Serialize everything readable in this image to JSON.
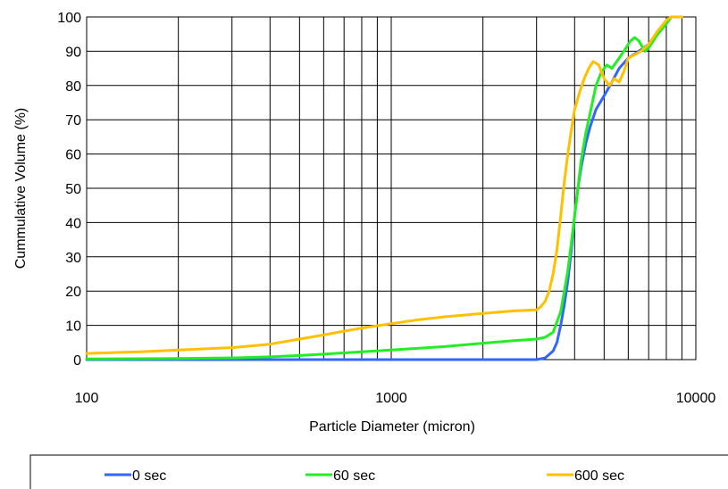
{
  "chart_data": {
    "type": "line",
    "title": "",
    "xlabel": "Particle Diameter (micron)",
    "ylabel": "Cummulative Volume (%)",
    "x_scale": "log",
    "xlim": [
      100,
      10000
    ],
    "ylim": [
      0,
      100
    ],
    "x_tick_labels": [
      "100",
      "1000",
      "10000"
    ],
    "y_tick_labels": [
      "0",
      "10",
      "20",
      "30",
      "40",
      "50",
      "60",
      "70",
      "80",
      "90",
      "100"
    ],
    "grid": true,
    "legend_position": "bottom",
    "series": [
      {
        "name": "0 sec",
        "color": "#3366ff",
        "points": [
          [
            100,
            0
          ],
          [
            1000,
            0
          ],
          [
            3000,
            0
          ],
          [
            3200,
            0.5
          ],
          [
            3400,
            2.5
          ],
          [
            3500,
            5
          ],
          [
            3600,
            10
          ],
          [
            3700,
            16
          ],
          [
            3800,
            23
          ],
          [
            3900,
            32
          ],
          [
            4000,
            42
          ],
          [
            4100,
            50
          ],
          [
            4200,
            56
          ],
          [
            4350,
            63
          ],
          [
            4500,
            68
          ],
          [
            4700,
            73
          ],
          [
            5000,
            77
          ],
          [
            5300,
            81
          ],
          [
            5600,
            85
          ],
          [
            6000,
            88
          ],
          [
            6500,
            90
          ],
          [
            7000,
            92
          ],
          [
            7500,
            95
          ],
          [
            8000,
            98
          ],
          [
            8300,
            100
          ],
          [
            9000,
            100
          ]
        ]
      },
      {
        "name": "60 sec",
        "color": "#22ee22",
        "points": [
          [
            100,
            0.2
          ],
          [
            200,
            0.3
          ],
          [
            300,
            0.5
          ],
          [
            400,
            0.8
          ],
          [
            500,
            1.2
          ],
          [
            600,
            1.6
          ],
          [
            800,
            2.3
          ],
          [
            1000,
            2.8
          ],
          [
            1500,
            3.8
          ],
          [
            2000,
            4.8
          ],
          [
            2500,
            5.5
          ],
          [
            3000,
            6
          ],
          [
            3200,
            6.5
          ],
          [
            3400,
            8
          ],
          [
            3500,
            11
          ],
          [
            3600,
            14
          ],
          [
            3700,
            20
          ],
          [
            3800,
            26
          ],
          [
            3900,
            34
          ],
          [
            4000,
            42
          ],
          [
            4100,
            50
          ],
          [
            4200,
            58
          ],
          [
            4350,
            66
          ],
          [
            4500,
            72
          ],
          [
            4700,
            80
          ],
          [
            4900,
            84
          ],
          [
            5100,
            86
          ],
          [
            5300,
            85
          ],
          [
            5600,
            88
          ],
          [
            5900,
            91
          ],
          [
            6100,
            93
          ],
          [
            6300,
            94
          ],
          [
            6500,
            93
          ],
          [
            6800,
            90
          ],
          [
            7000,
            91
          ],
          [
            7500,
            95
          ],
          [
            8000,
            98
          ],
          [
            8300,
            100
          ],
          [
            9000,
            100
          ]
        ]
      },
      {
        "name": "600 sec",
        "color": "#ffc000",
        "points": [
          [
            100,
            1.8
          ],
          [
            150,
            2.3
          ],
          [
            200,
            2.8
          ],
          [
            300,
            3.5
          ],
          [
            400,
            4.5
          ],
          [
            500,
            6
          ],
          [
            600,
            7.2
          ],
          [
            700,
            8.3
          ],
          [
            800,
            9.2
          ],
          [
            1000,
            10.5
          ],
          [
            1200,
            11.5
          ],
          [
            1500,
            12.5
          ],
          [
            2000,
            13.5
          ],
          [
            2500,
            14.2
          ],
          [
            3000,
            14.5
          ],
          [
            3100,
            15.5
          ],
          [
            3200,
            17
          ],
          [
            3300,
            20
          ],
          [
            3400,
            25
          ],
          [
            3500,
            32
          ],
          [
            3600,
            42
          ],
          [
            3700,
            52
          ],
          [
            3800,
            60
          ],
          [
            3900,
            67
          ],
          [
            4000,
            73
          ],
          [
            4150,
            78
          ],
          [
            4300,
            82
          ],
          [
            4450,
            85
          ],
          [
            4600,
            87
          ],
          [
            4800,
            86
          ],
          [
            5000,
            82
          ],
          [
            5200,
            80
          ],
          [
            5400,
            82
          ],
          [
            5600,
            81
          ],
          [
            5800,
            84
          ],
          [
            6000,
            88
          ],
          [
            6300,
            89
          ],
          [
            6600,
            90
          ],
          [
            7000,
            92
          ],
          [
            7500,
            96
          ],
          [
            8000,
            99
          ],
          [
            8300,
            100
          ],
          [
            9000,
            100
          ]
        ]
      }
    ]
  }
}
